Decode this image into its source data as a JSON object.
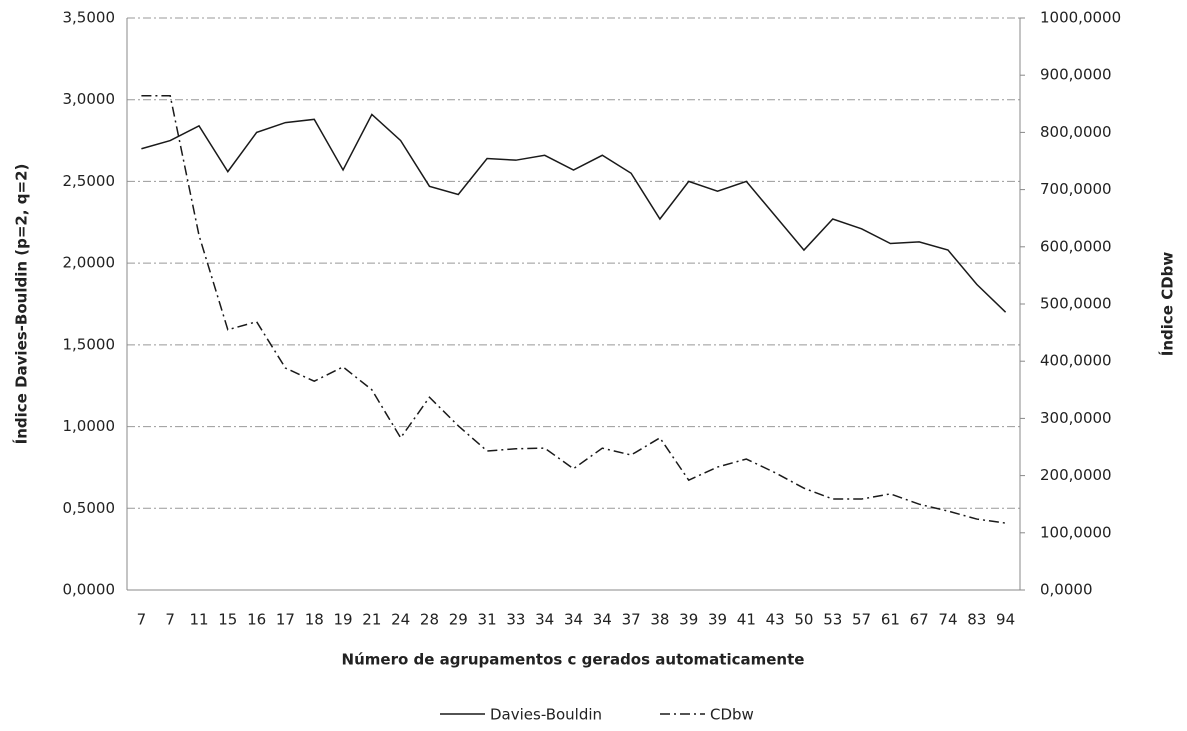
{
  "chart_data": {
    "type": "line",
    "x_label": "Número de agrupamentos  c gerados automaticamente",
    "y_label": "Índice Davies-Bouldin  (p=2, q=2)",
    "y2_label": "Índice CDbw",
    "categories": [
      "7",
      "7",
      "11",
      "15",
      "16",
      "17",
      "18",
      "19",
      "21",
      "24",
      "28",
      "29",
      "31",
      "33",
      "34",
      "34",
      "34",
      "37",
      "38",
      "39",
      "39",
      "41",
      "43",
      "50",
      "53",
      "57",
      "61",
      "67",
      "74",
      "83",
      "94"
    ],
    "series": [
      {
        "name": "Davies-Bouldin",
        "color": "#1a1a1a",
        "dash": "solid",
        "axis": "y",
        "values": [
          2.7,
          2.75,
          2.84,
          2.56,
          2.8,
          2.86,
          2.88,
          2.57,
          2.91,
          2.75,
          2.47,
          2.42,
          2.64,
          2.63,
          2.66,
          2.57,
          2.66,
          2.55,
          2.27,
          2.5,
          2.44,
          2.5,
          2.29,
          2.08,
          2.27,
          2.21,
          2.12,
          2.13,
          2.08,
          1.87,
          1.7
        ]
      },
      {
        "name": "CDbw",
        "color": "#1a1a1a",
        "dash": "dashdot",
        "axis": "y2",
        "values": [
          864,
          864,
          620,
          455,
          469,
          388,
          365,
          390,
          350,
          266,
          337,
          287,
          243,
          247,
          248,
          212,
          248,
          236,
          266,
          192,
          215,
          229,
          205,
          178,
          159,
          159,
          168,
          150,
          138,
          124,
          117
        ]
      }
    ],
    "ylim": [
      0,
      3.5
    ],
    "yticks": [
      {
        "value": 0,
        "label": "0,0000"
      },
      {
        "value": 0.5,
        "label": "0,5000"
      },
      {
        "value": 1,
        "label": "1,0000"
      },
      {
        "value": 1.5,
        "label": "1,5000"
      },
      {
        "value": 2,
        "label": "2,0000"
      },
      {
        "value": 2.5,
        "label": "2,5000"
      },
      {
        "value": 3,
        "label": "3,0000"
      },
      {
        "value": 3.5,
        "label": "3,5000"
      }
    ],
    "y2lim": [
      0,
      1000
    ],
    "y2ticks": [
      {
        "value": 0,
        "label": "0,0000"
      },
      {
        "value": 100,
        "label": "100,0000"
      },
      {
        "value": 200,
        "label": "200,0000"
      },
      {
        "value": 300,
        "label": "300,0000"
      },
      {
        "value": 400,
        "label": "400,0000"
      },
      {
        "value": 500,
        "label": "500,0000"
      },
      {
        "value": 600,
        "label": "600,0000"
      },
      {
        "value": 700,
        "label": "700,0000"
      },
      {
        "value": 800,
        "label": "800,0000"
      },
      {
        "value": 900,
        "label": "900,0000"
      },
      {
        "value": 1000,
        "label": "1000,0000"
      }
    ],
    "grid": true,
    "legend": "bottom"
  }
}
